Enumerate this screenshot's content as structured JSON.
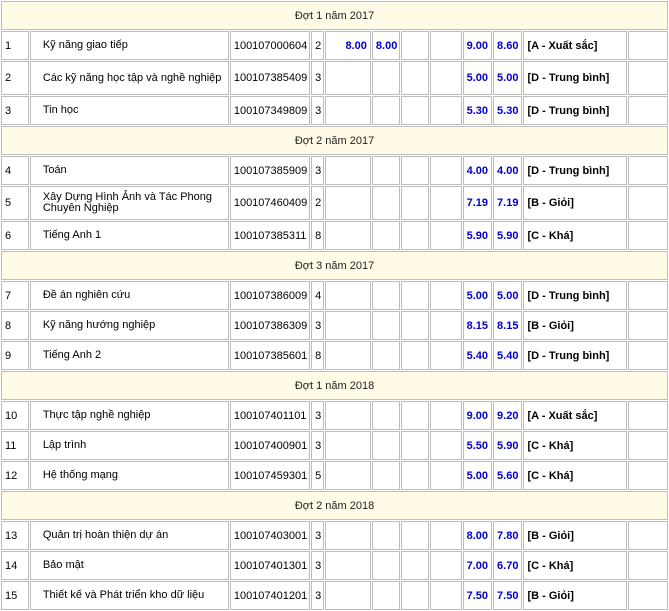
{
  "groups": [
    {
      "title": "Đợt 1 năm 2017",
      "rows": [
        {
          "stt": "1",
          "name": "Kỹ năng giao tiếp",
          "code": "100107000604",
          "credits": "2",
          "c1": "8.00",
          "c2": "8.00",
          "c3": "",
          "c4": "",
          "score10": "9.00",
          "total": "8.60",
          "grade": "[A - Xuất sắc]",
          "tall": false
        },
        {
          "stt": "2",
          "name": "Các kỹ năng học tập và nghề nghiệp",
          "code": "100107385409",
          "credits": "3",
          "c1": "",
          "c2": "",
          "c3": "",
          "c4": "",
          "score10": "5.00",
          "total": "5.00",
          "grade": "[D - Trung bình]",
          "tall": true
        },
        {
          "stt": "3",
          "name": "Tin học",
          "code": "100107349809",
          "credits": "3",
          "c1": "",
          "c2": "",
          "c3": "",
          "c4": "",
          "score10": "5.30",
          "total": "5.30",
          "grade": "[D - Trung bình]",
          "tall": false
        }
      ]
    },
    {
      "title": "Đợt 2 năm 2017",
      "rows": [
        {
          "stt": "4",
          "name": "Toán",
          "code": "100107385909",
          "credits": "3",
          "c1": "",
          "c2": "",
          "c3": "",
          "c4": "",
          "score10": "4.00",
          "total": "4.00",
          "grade": "[D - Trung bình]",
          "tall": false
        },
        {
          "stt": "5",
          "name": "Xây Dựng Hình Ảnh và Tác Phong Chuyên Nghiệp",
          "code": "100107460409",
          "credits": "2",
          "c1": "",
          "c2": "",
          "c3": "",
          "c4": "",
          "score10": "7.19",
          "total": "7.19",
          "grade": "[B - Giỏi]",
          "tall": true
        },
        {
          "stt": "6",
          "name": "Tiếng Anh 1",
          "code": "100107385311",
          "credits": "8",
          "c1": "",
          "c2": "",
          "c3": "",
          "c4": "",
          "score10": "5.90",
          "total": "5.90",
          "grade": "[C - Khá]",
          "tall": false
        }
      ]
    },
    {
      "title": "Đợt 3 năm 2017",
      "rows": [
        {
          "stt": "7",
          "name": "Đề án nghiên cứu",
          "code": "100107386009",
          "credits": "4",
          "c1": "",
          "c2": "",
          "c3": "",
          "c4": "",
          "score10": "5.00",
          "total": "5.00",
          "grade": "[D - Trung bình]",
          "tall": false
        },
        {
          "stt": "8",
          "name": "Kỹ năng hướng nghiệp",
          "code": "100107386309",
          "credits": "3",
          "c1": "",
          "c2": "",
          "c3": "",
          "c4": "",
          "score10": "8.15",
          "total": "8.15",
          "grade": "[B - Giỏi]",
          "tall": false
        },
        {
          "stt": "9",
          "name": "Tiếng Anh 2",
          "code": "100107385601",
          "credits": "8",
          "c1": "",
          "c2": "",
          "c3": "",
          "c4": "",
          "score10": "5.40",
          "total": "5.40",
          "grade": "[D - Trung bình]",
          "tall": false
        }
      ]
    },
    {
      "title": "Đợt 1 năm 2018",
      "rows": [
        {
          "stt": "10",
          "name": "Thực tập nghề nghiệp",
          "code": "100107401101",
          "credits": "3",
          "c1": "",
          "c2": "",
          "c3": "",
          "c4": "",
          "score10": "9.00",
          "total": "9.20",
          "grade": "[A - Xuất sắc]",
          "tall": false
        },
        {
          "stt": "11",
          "name": "Lập trình",
          "code": "100107400901",
          "credits": "3",
          "c1": "",
          "c2": "",
          "c3": "",
          "c4": "",
          "score10": "5.50",
          "total": "5.90",
          "grade": "[C - Khá]",
          "tall": false
        },
        {
          "stt": "12",
          "name": "Hệ thống mạng",
          "code": "100107459301",
          "credits": "5",
          "c1": "",
          "c2": "",
          "c3": "",
          "c4": "",
          "score10": "5.00",
          "total": "5.60",
          "grade": "[C - Khá]",
          "tall": false
        }
      ]
    },
    {
      "title": "Đợt 2 năm 2018",
      "rows": [
        {
          "stt": "13",
          "name": "Quản trị hoàn thiện dự án",
          "code": "100107403001",
          "credits": "3",
          "c1": "",
          "c2": "",
          "c3": "",
          "c4": "",
          "score10": "8.00",
          "total": "7.80",
          "grade": "[B - Giỏi]",
          "tall": false
        },
        {
          "stt": "14",
          "name": "Bảo mật",
          "code": "100107401301",
          "credits": "3",
          "c1": "",
          "c2": "",
          "c3": "",
          "c4": "",
          "score10": "7.00",
          "total": "6.70",
          "grade": "[C - Khá]",
          "tall": false
        },
        {
          "stt": "15",
          "name": "Thiết kế và Phát triển kho dữ liệu",
          "code": "100107401201",
          "credits": "3",
          "c1": "",
          "c2": "",
          "c3": "",
          "c4": "",
          "score10": "7.50",
          "total": "7.50",
          "grade": "[B - Giỏi]",
          "tall": false
        }
      ]
    }
  ]
}
